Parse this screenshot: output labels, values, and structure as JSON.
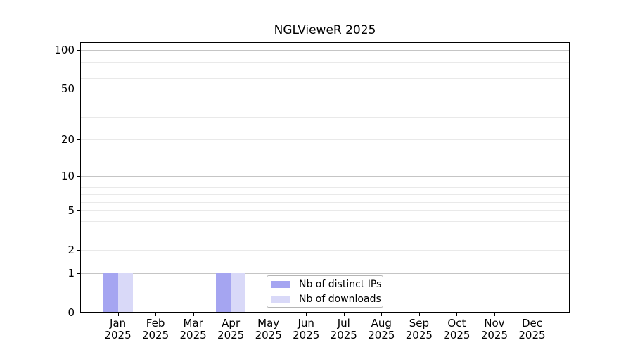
{
  "chart_data": {
    "type": "bar",
    "title": "NGLVieweR 2025",
    "categories": [
      "Jan 2025",
      "Feb 2025",
      "Mar 2025",
      "Apr 2025",
      "May 2025",
      "Jun 2025",
      "Jul 2025",
      "Aug 2025",
      "Sep 2025",
      "Oct 2025",
      "Nov 2025",
      "Dec 2025"
    ],
    "series": [
      {
        "name": "Nb of distinct IPs",
        "color": "#a5a5f1",
        "values": [
          1,
          0,
          0,
          1,
          0,
          0,
          0,
          0,
          0,
          0,
          0,
          0
        ]
      },
      {
        "name": "Nb of downloads",
        "color": "#d9d9f8",
        "values": [
          1,
          0,
          0,
          1,
          0,
          0,
          0,
          0,
          0,
          0,
          0,
          0
        ]
      }
    ],
    "y_axis": {
      "scale": "log1p",
      "max": 114,
      "tick_values": [
        0,
        1,
        2,
        5,
        10,
        20,
        50,
        100
      ],
      "gridlines_light": [
        2,
        3,
        4,
        5,
        6,
        7,
        8,
        9,
        20,
        30,
        40,
        50,
        60,
        70,
        80,
        90
      ],
      "gridlines_dark": [
        1,
        10,
        100
      ]
    },
    "legend_position": "bottom-center",
    "grid": true,
    "colors": {
      "grid_light": "#e9e9e9",
      "grid_dark": "#c5c5c5",
      "axis": "#000000",
      "legend_border": "#b5b5b5",
      "background": "#ffffff"
    }
  }
}
